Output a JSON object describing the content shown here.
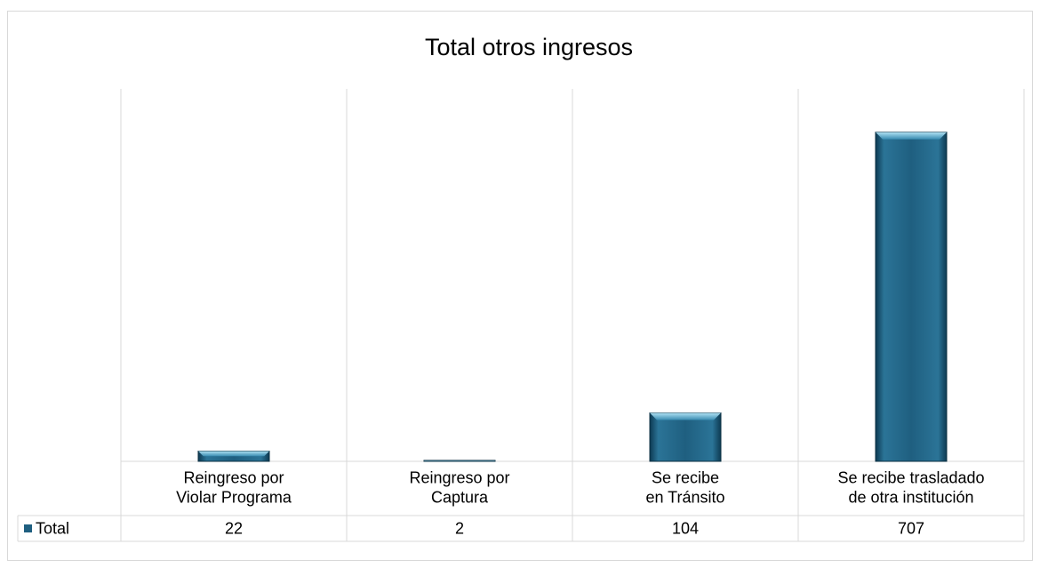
{
  "chart_data": {
    "type": "bar",
    "title": "Total otros ingresos",
    "categories": [
      "Reingreso por\nViolar Programa",
      "Reingreso por\nCaptura",
      "Se recibe\nen Tránsito",
      "Se recibe trasladado\nde otra institución"
    ],
    "series": [
      {
        "name": "Total",
        "color": "#1f5f80",
        "values": [
          22,
          2,
          104,
          707
        ]
      }
    ],
    "ylim": [
      0,
      800
    ]
  }
}
